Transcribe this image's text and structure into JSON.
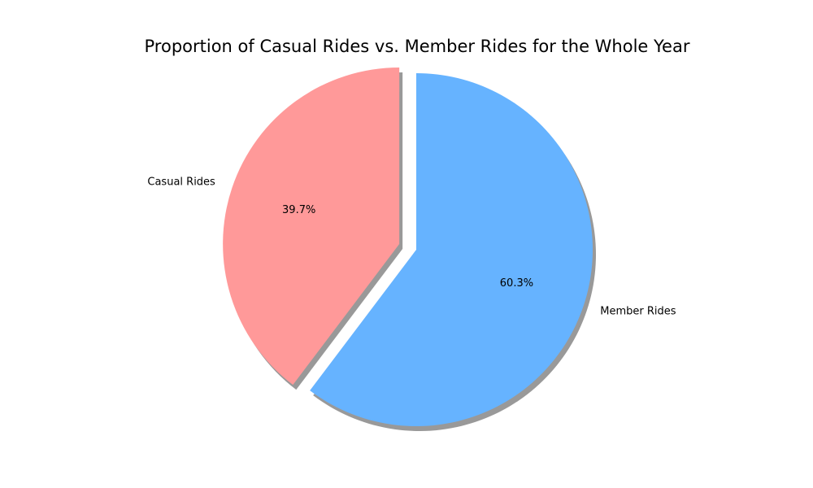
{
  "chart_data": {
    "type": "pie",
    "title": "Proportion of Casual Rides vs. Member Rides for the Whole Year",
    "slices": [
      {
        "label": "Casual Rides",
        "value": 39.7,
        "pct_label": "39.7%",
        "color": "#ff9999",
        "exploded": true
      },
      {
        "label": "Member Rides",
        "value": 60.3,
        "pct_label": "60.3%",
        "color": "#66b3ff",
        "exploded": false
      }
    ],
    "start_angle": "top, counter-clockwise",
    "shadow": true,
    "legend": "none"
  }
}
